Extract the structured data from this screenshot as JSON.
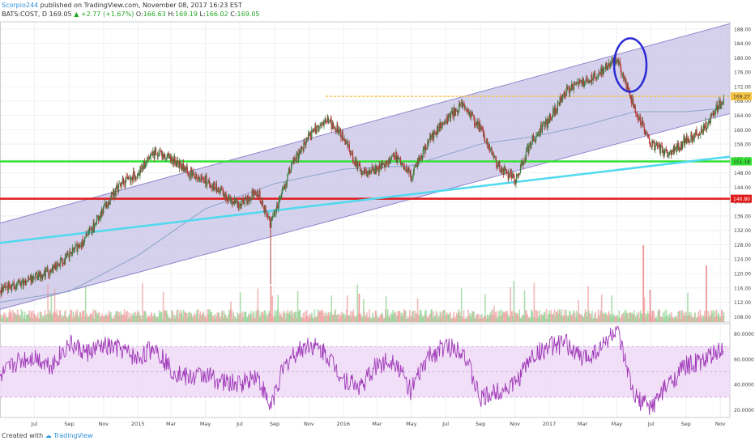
{
  "header": {
    "author": "Scorpio244",
    "published_text": "published on TradingView.com, November 08, 2017 16:23 EST",
    "symbol": "BATS:COST, D",
    "last": "169.05",
    "change": "+2.77 (+1.67%)",
    "open_label": "O:",
    "open": "166.63",
    "high_label": "H:",
    "high": "169.19",
    "low_label": "L:",
    "low": "166.02",
    "close_label": "C:",
    "close": "169.05"
  },
  "footer": {
    "created_with": "Created with",
    "brand": "TradingView"
  },
  "colors": {
    "up": "#26a69a",
    "down": "#ef5350",
    "candle_up": "#3f7a3f",
    "candle_down": "#b23a3a",
    "channel_fill": "#c7c1e6",
    "channel_line": "#8f86cc",
    "trend": "#4fd9ee",
    "support": "#33e033",
    "floor": "#e01a1a",
    "resistance": "#f5c242",
    "ellipse": "#2b2bd6",
    "rsi": "#a03ab8",
    "rsi_band": "#efdcf7",
    "ma": "#8ba3c7"
  },
  "chart_data": [
    {
      "type": "candlestick",
      "title": "",
      "symbol": "BATS:COST, D",
      "x_axis_labels": [
        "Jul",
        "Sep",
        "Nov",
        "2015",
        "Mar",
        "May",
        "Jul",
        "Sep",
        "Nov",
        "2016",
        "Mar",
        "May",
        "Jul",
        "Sep",
        "Nov",
        "2017",
        "Mar",
        "May",
        "Jul",
        "Sep",
        "Nov"
      ],
      "y_ticks": [
        108,
        112,
        116,
        120,
        124,
        128,
        132,
        136,
        140,
        144,
        148,
        152,
        156,
        160,
        164,
        168,
        172,
        176,
        180,
        184,
        188
      ],
      "ylim": [
        106.5,
        190
      ],
      "price_labels": {
        "resistance": "169.27",
        "support": "151.18",
        "floor": "140.80"
      },
      "series": [
        {
          "name": "close",
          "points": [
            [
              "2014-05-01",
              115
            ],
            [
              "2014-06-01",
              117
            ],
            [
              "2014-07-01",
              119
            ],
            [
              "2014-08-01",
              121
            ],
            [
              "2014-09-01",
              125
            ],
            [
              "2014-10-01",
              130
            ],
            [
              "2014-11-01",
              138
            ],
            [
              "2014-12-01",
              145
            ],
            [
              "2015-01-01",
              148
            ],
            [
              "2015-02-01",
              154
            ],
            [
              "2015-03-01",
              152
            ],
            [
              "2015-04-01",
              148
            ],
            [
              "2015-05-01",
              146
            ],
            [
              "2015-06-01",
              142
            ],
            [
              "2015-07-01",
              139
            ],
            [
              "2015-08-01",
              143
            ],
            [
              "2015-08-24",
              134
            ],
            [
              "2015-09-15",
              143
            ],
            [
              "2015-10-01",
              150
            ],
            [
              "2015-11-01",
              158
            ],
            [
              "2015-12-01",
              163
            ],
            [
              "2016-01-01",
              158
            ],
            [
              "2016-02-01",
              148
            ],
            [
              "2016-03-01",
              149
            ],
            [
              "2016-04-01",
              153
            ],
            [
              "2016-05-01",
              147
            ],
            [
              "2016-06-01",
              157
            ],
            [
              "2016-07-01",
              163
            ],
            [
              "2016-08-01",
              167
            ],
            [
              "2016-09-01",
              160
            ],
            [
              "2016-10-01",
              150
            ],
            [
              "2016-11-01",
              146
            ],
            [
              "2016-12-01",
              157
            ],
            [
              "2017-01-01",
              163
            ],
            [
              "2017-02-01",
              171
            ],
            [
              "2017-03-01",
              173
            ],
            [
              "2017-04-01",
              176
            ],
            [
              "2017-05-01",
              180
            ],
            [
              "2017-06-01",
              166
            ],
            [
              "2017-07-01",
              156
            ],
            [
              "2017-08-01",
              153
            ],
            [
              "2017-09-01",
              157
            ],
            [
              "2017-10-01",
              160
            ],
            [
              "2017-11-07",
              169
            ]
          ]
        }
      ],
      "levels": [
        {
          "name": "resistance",
          "value": 169.27
        },
        {
          "name": "support",
          "value": 151.18
        },
        {
          "name": "floor",
          "value": 140.8
        }
      ]
    },
    {
      "type": "line",
      "title": "",
      "y_ticks": [
        "20.0000",
        "40.0000",
        "60.0000",
        "80.0000"
      ],
      "ylim": [
        14,
        88
      ],
      "bands": [
        30,
        70
      ],
      "series": [
        {
          "name": "rsi",
          "points": [
            [
              "2014-05-01",
              45
            ],
            [
              "2014-06-01",
              58
            ],
            [
              "2014-07-01",
              62
            ],
            [
              "2014-08-01",
              55
            ],
            [
              "2014-09-01",
              72
            ],
            [
              "2014-10-01",
              65
            ],
            [
              "2014-11-01",
              70
            ],
            [
              "2014-12-01",
              68
            ],
            [
              "2015-01-01",
              60
            ],
            [
              "2015-02-01",
              70
            ],
            [
              "2015-03-01",
              52
            ],
            [
              "2015-04-01",
              45
            ],
            [
              "2015-05-01",
              48
            ],
            [
              "2015-06-01",
              42
            ],
            [
              "2015-07-01",
              40
            ],
            [
              "2015-08-01",
              48
            ],
            [
              "2015-08-24",
              22
            ],
            [
              "2015-09-15",
              50
            ],
            [
              "2015-10-01",
              62
            ],
            [
              "2015-11-01",
              72
            ],
            [
              "2015-12-01",
              65
            ],
            [
              "2016-01-01",
              45
            ],
            [
              "2016-02-01",
              38
            ],
            [
              "2016-03-01",
              55
            ],
            [
              "2016-04-01",
              60
            ],
            [
              "2016-05-01",
              35
            ],
            [
              "2016-06-01",
              62
            ],
            [
              "2016-07-01",
              70
            ],
            [
              "2016-08-01",
              68
            ],
            [
              "2016-09-01",
              28
            ],
            [
              "2016-10-01",
              35
            ],
            [
              "2016-11-01",
              40
            ],
            [
              "2016-12-01",
              62
            ],
            [
              "2017-01-01",
              70
            ],
            [
              "2017-02-01",
              72
            ],
            [
              "2017-03-01",
              60
            ],
            [
              "2017-04-01",
              68
            ],
            [
              "2017-05-01",
              84
            ],
            [
              "2017-06-01",
              30
            ],
            [
              "2017-07-01",
              22
            ],
            [
              "2017-08-01",
              40
            ],
            [
              "2017-09-01",
              55
            ],
            [
              "2017-10-01",
              58
            ],
            [
              "2017-11-07",
              68
            ]
          ]
        }
      ]
    }
  ]
}
